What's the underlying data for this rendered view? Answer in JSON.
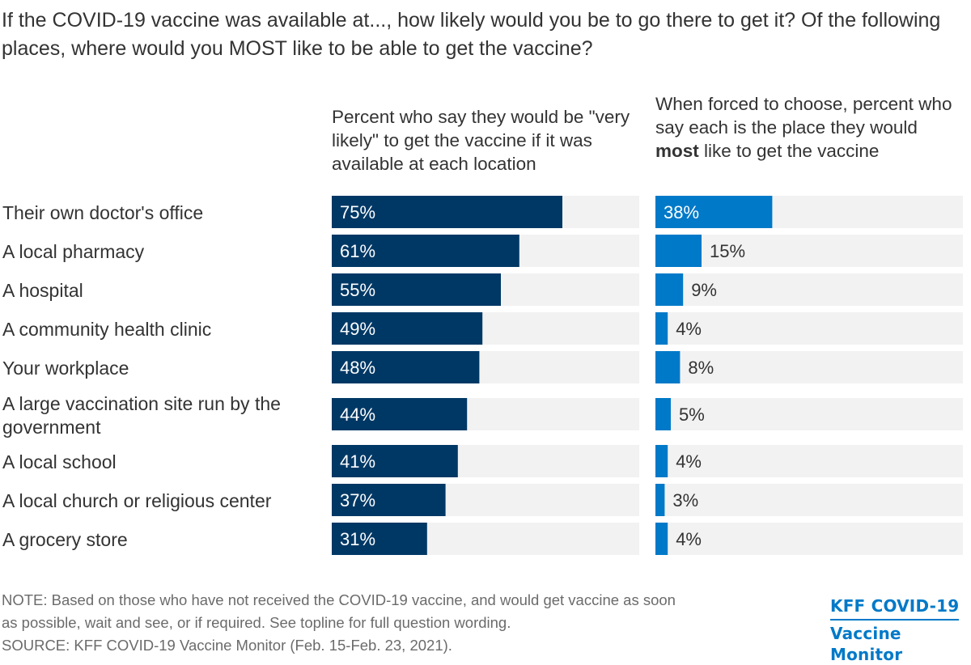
{
  "title": "If the COVID-19 vaccine was available at..., how likely would you be to go there to get it? Of the following places, where would you MOST like to be able to get the vaccine?",
  "headers": {
    "likely": "Percent who say they would be \"very likely\" to get the vaccine if it was available at each location",
    "most_before": "When forced to choose, percent who say each is the place they would ",
    "most_bold": "most",
    "most_after": " like to get the vaccine"
  },
  "colors": {
    "likely_bar": "#003865",
    "most_bar": "#0079c8",
    "track": "#f2f2f2"
  },
  "chart_data": {
    "type": "bar",
    "orientation": "horizontal",
    "categories": [
      [
        "Their own doctor's office"
      ],
      [
        "A local pharmacy"
      ],
      [
        "A hospital"
      ],
      [
        "A community health clinic"
      ],
      [
        "Your workplace"
      ],
      [
        "A large vaccination site run by the",
        "government"
      ],
      [
        "A local school"
      ],
      [
        "A local church or religious center"
      ],
      [
        "A grocery store"
      ]
    ],
    "series": [
      {
        "name": "Percent who say they would be \"very likely\" to get the vaccine if it was available at each location",
        "values": [
          75,
          61,
          55,
          49,
          48,
          44,
          41,
          37,
          31
        ],
        "labels": [
          "75%",
          "61%",
          "55%",
          "49%",
          "48%",
          "44%",
          "41%",
          "37%",
          "31%"
        ]
      },
      {
        "name": "When forced to choose, percent who say each is the place they would most like to get the vaccine",
        "values": [
          38,
          15,
          9,
          4,
          8,
          5,
          4,
          3,
          4
        ],
        "labels": [
          "38%",
          "15%",
          "9%",
          "4%",
          "8%",
          "5%",
          "4%",
          "3%",
          "4%"
        ]
      }
    ],
    "xlim": [
      0,
      100
    ],
    "grid": false
  },
  "note": [
    "NOTE: Based on those who have not received the COVID-19 vaccine, and would get vaccine as soon",
    "as possible, wait and see, or if required. See topline for full question wording."
  ],
  "source": "SOURCE: KFF COVID-19 Vaccine Monitor (Feb. 15-Feb. 23, 2021).",
  "brand": {
    "line1": "KFF COVID-19",
    "line2": "Vaccine Monitor"
  }
}
